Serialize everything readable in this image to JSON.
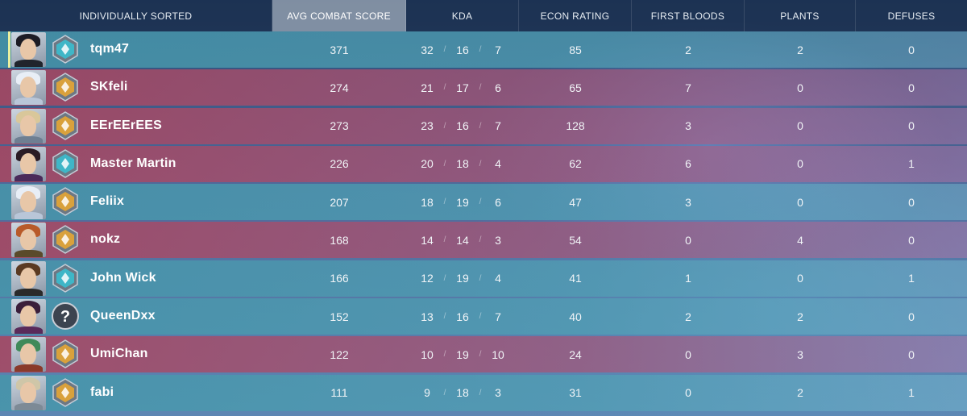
{
  "header": {
    "player": "INDIVIDUALLY SORTED",
    "acs": "AVG COMBAT SCORE",
    "kda": "KDA",
    "econ": "ECON RATING",
    "first_bloods": "FIRST BLOODS",
    "plants": "PLANTS",
    "defuses": "DEFUSES"
  },
  "kda_separator": "/",
  "colors": {
    "teal_team": "#4696aa",
    "red_team": "#aa465f",
    "self_marker": "#e9ef9f",
    "rank_gold": "#d9a13c",
    "rank_platinum": "#3fb6c7"
  },
  "players": [
    {
      "name": "tqm47",
      "acs": "371",
      "k": "32",
      "d": "16",
      "a": "7",
      "econ": "85",
      "fb": "2",
      "plants": "2",
      "defuses": "0",
      "team": "teal",
      "agent_icon": "agent-portrait-icon",
      "rank_icon": "platinum-rank-icon"
    },
    {
      "name": "SKfeli",
      "acs": "274",
      "k": "21",
      "d": "17",
      "a": "6",
      "econ": "65",
      "fb": "7",
      "plants": "0",
      "defuses": "0",
      "team": "red",
      "agent_icon": "agent-portrait-icon",
      "rank_icon": "gold-rank-icon"
    },
    {
      "name": "EErEErEES",
      "acs": "273",
      "k": "23",
      "d": "16",
      "a": "7",
      "econ": "128",
      "fb": "3",
      "plants": "0",
      "defuses": "0",
      "team": "red",
      "agent_icon": "agent-portrait-icon",
      "rank_icon": "gold-rank-icon"
    },
    {
      "name": "Master Martin",
      "acs": "226",
      "k": "20",
      "d": "18",
      "a": "4",
      "econ": "62",
      "fb": "6",
      "plants": "0",
      "defuses": "1",
      "team": "red",
      "agent_icon": "agent-portrait-icon",
      "rank_icon": "platinum-rank-icon"
    },
    {
      "name": "Feliix",
      "acs": "207",
      "k": "18",
      "d": "19",
      "a": "6",
      "econ": "47",
      "fb": "3",
      "plants": "0",
      "defuses": "0",
      "team": "teal",
      "agent_icon": "agent-portrait-icon",
      "rank_icon": "gold-rank-icon"
    },
    {
      "name": "nokz",
      "acs": "168",
      "k": "14",
      "d": "14",
      "a": "3",
      "econ": "54",
      "fb": "0",
      "plants": "4",
      "defuses": "0",
      "team": "red",
      "agent_icon": "agent-portrait-icon",
      "rank_icon": "gold-rank-icon"
    },
    {
      "name": "John Wick",
      "acs": "166",
      "k": "12",
      "d": "19",
      "a": "4",
      "econ": "41",
      "fb": "1",
      "plants": "0",
      "defuses": "1",
      "team": "teal",
      "agent_icon": "agent-portrait-icon",
      "rank_icon": "platinum-rank-icon"
    },
    {
      "name": "QueenDxx",
      "acs": "152",
      "k": "13",
      "d": "16",
      "a": "7",
      "econ": "40",
      "fb": "2",
      "plants": "2",
      "defuses": "0",
      "team": "teal",
      "agent_icon": "agent-portrait-icon",
      "rank_icon": "unknown-rank-icon"
    },
    {
      "name": "UmiChan",
      "acs": "122",
      "k": "10",
      "d": "19",
      "a": "10",
      "econ": "24",
      "fb": "0",
      "plants": "3",
      "defuses": "0",
      "team": "red",
      "agent_icon": "agent-portrait-icon",
      "rank_icon": "gold-rank-icon"
    },
    {
      "name": "fabi",
      "acs": "111",
      "k": "9",
      "d": "18",
      "a": "3",
      "econ": "31",
      "fb": "0",
      "plants": "2",
      "defuses": "1",
      "team": "teal",
      "agent_icon": "agent-portrait-icon",
      "rank_icon": "gold-rank-icon"
    }
  ]
}
